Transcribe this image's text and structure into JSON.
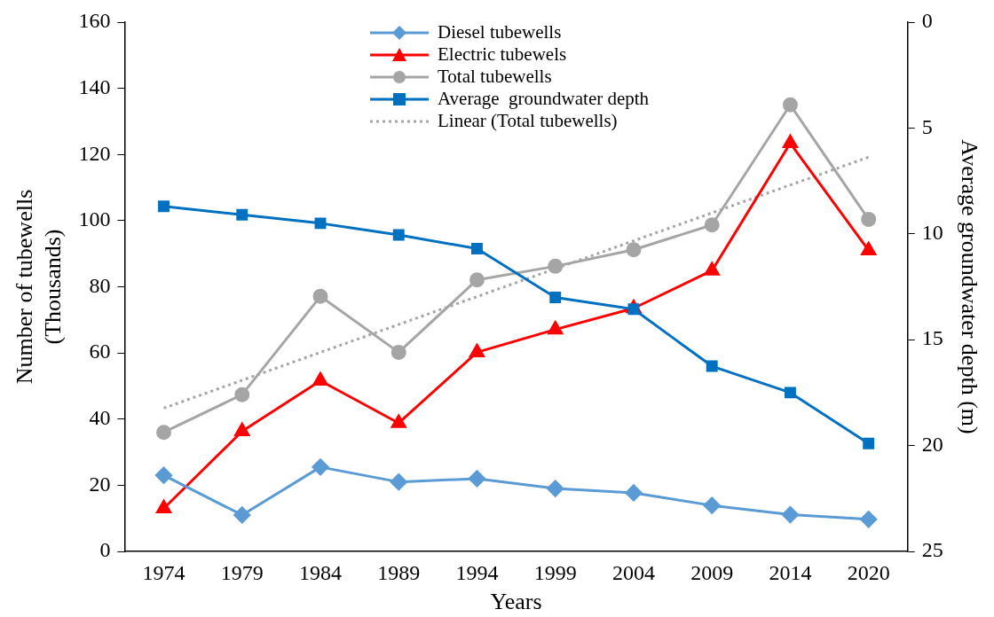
{
  "chart_data": {
    "type": "line",
    "xlabel": "Years",
    "ylabel": "Number of tubewells\n(Thousands)",
    "y2label": "Average groundwater depth (m)",
    "categories": [
      "1974",
      "1979",
      "1984",
      "1989",
      "1994",
      "1999",
      "2004",
      "2009",
      "2014",
      "2020"
    ],
    "ylim": [
      0,
      160
    ],
    "yticks": [
      0,
      20,
      40,
      60,
      80,
      100,
      120,
      140,
      160
    ],
    "y2lim": [
      25,
      0
    ],
    "y2ticks": [
      0,
      5,
      10,
      15,
      20,
      25
    ],
    "grid": false,
    "legend": "top",
    "line_style": "solid",
    "series": [
      {
        "name": "Diesel tubewells",
        "color": "#5b9bd5",
        "marker": "diamond",
        "values": [
          23,
          11,
          25.5,
          21,
          22,
          19,
          17.7,
          13.9,
          11.1,
          9.7
        ]
      },
      {
        "name": "Electric tubewels",
        "color": "#ff0000",
        "marker": "triangle",
        "values": [
          13,
          36.3,
          51.6,
          38.8,
          60.2,
          67.1,
          73.5,
          84.9,
          123.4,
          91
        ]
      },
      {
        "name": "Total tubewells",
        "color": "#a5a5a5",
        "marker": "circle",
        "values": [
          36,
          47.4,
          77.1,
          60.2,
          82.1,
          86.2,
          91.2,
          98.7,
          135,
          100.4
        ]
      },
      {
        "name": "Average  groundwater depth",
        "color": "#0070c0",
        "marker": "square",
        "axis": "y2",
        "values": [
          8.7,
          9.1,
          9.5,
          10.05,
          10.7,
          13.0,
          13.56,
          16.25,
          17.5,
          19.9
        ]
      },
      {
        "name": "Linear (Total tubewells)",
        "color": "#a5a5a5",
        "marker": "none",
        "line_style": "dotted",
        "values": [
          43.3,
          null,
          null,
          null,
          null,
          null,
          null,
          null,
          null,
          119.2
        ]
      }
    ]
  }
}
